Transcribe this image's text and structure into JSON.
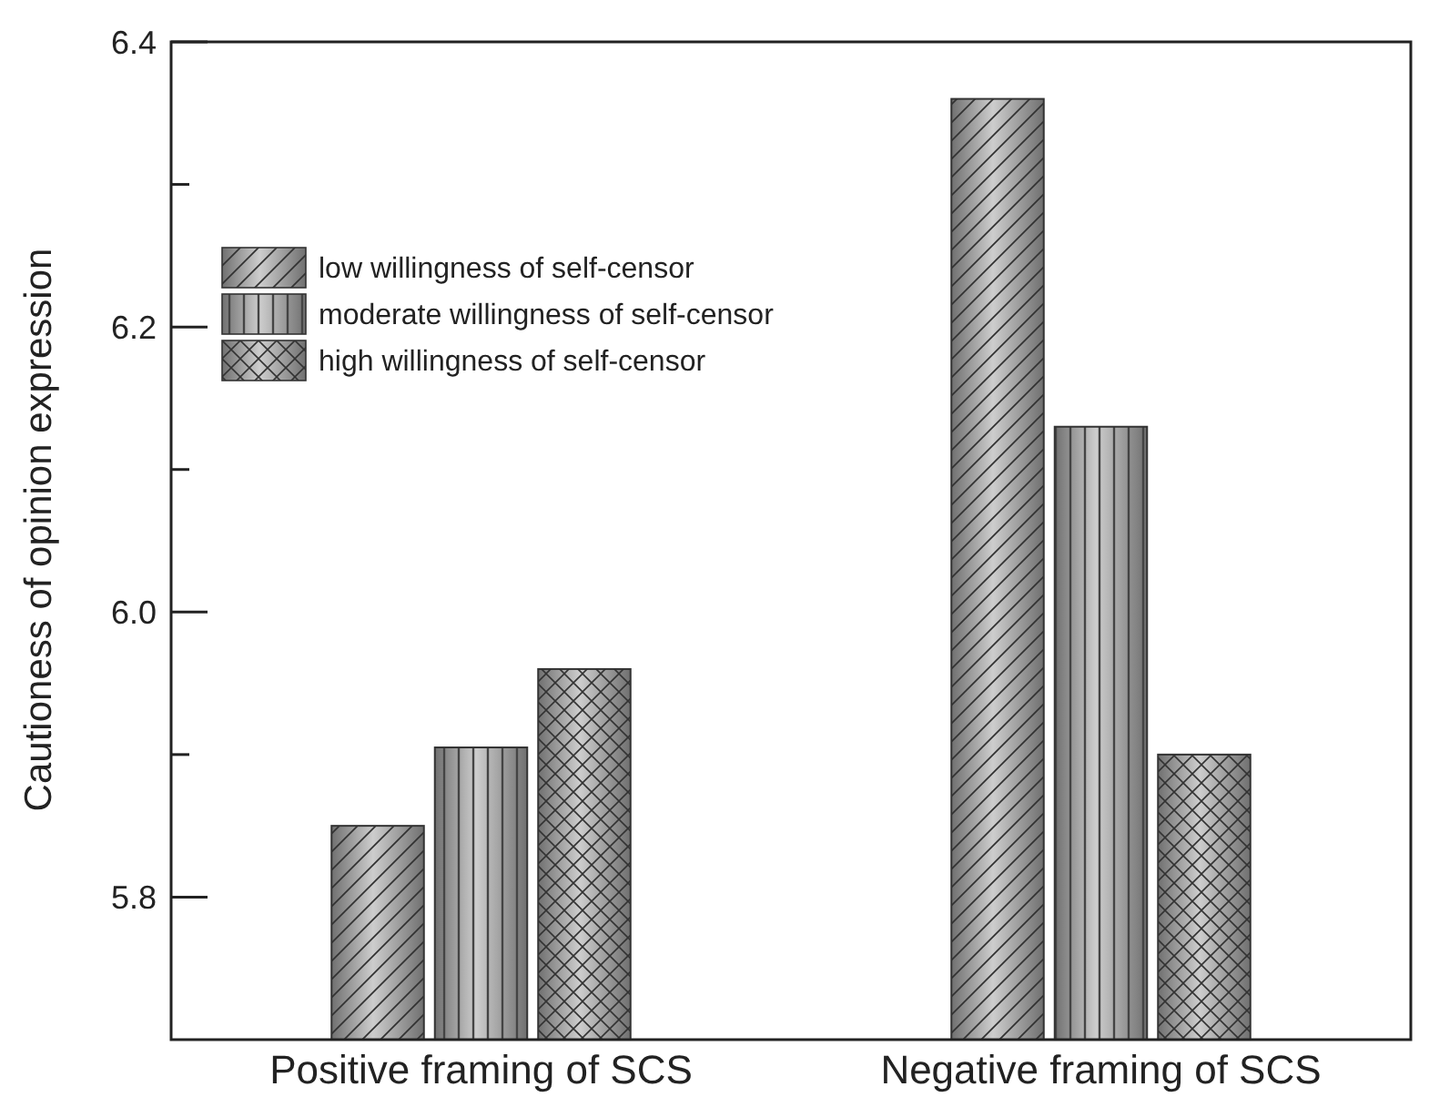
{
  "chart_data": {
    "type": "bar",
    "ylabel": "Cautioness of opinion expression",
    "categories": [
      "Positive framing of SCS",
      "Negative framing of SCS"
    ],
    "series": [
      {
        "name": "low willingness of self-censor",
        "color": "#9a9a9a",
        "values": [
          5.85,
          6.36
        ]
      },
      {
        "name": "moderate willingness of self-censor",
        "color": "#9a9a9a",
        "values": [
          5.905,
          6.13
        ]
      },
      {
        "name": "high willingness of self-censor",
        "color": "#9a9a9a",
        "values": [
          5.96,
          5.9
        ]
      }
    ],
    "ylim": [
      5.7,
      6.4
    ],
    "yticks": [
      5.8,
      {
        "value": 5.9,
        "label": null
      },
      "6.0",
      {
        "value": 6.1,
        "label": null
      },
      6.2,
      {
        "value": 6.3,
        "label": null
      },
      6.4
    ],
    "legend": "top left",
    "grid": false
  }
}
